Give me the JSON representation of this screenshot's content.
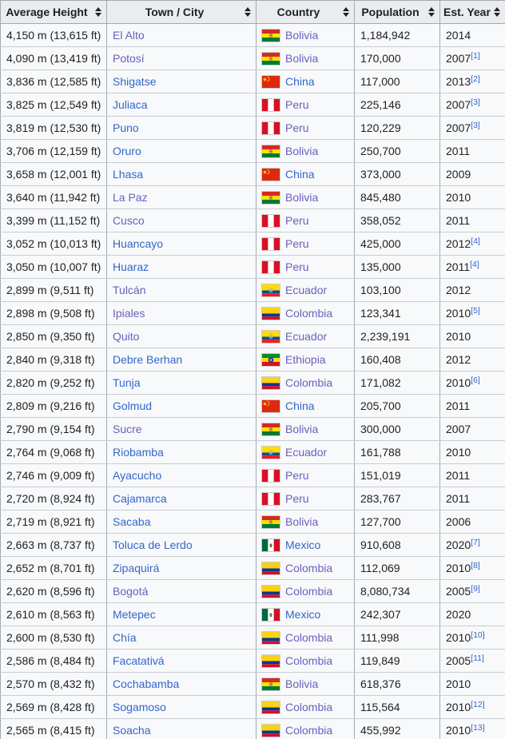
{
  "header": {
    "columns": [
      "Average Height",
      "Town / City",
      "Country",
      "Population",
      "Est. Year"
    ]
  },
  "colors": {
    "link_blue": "#3366cc",
    "link_visited_purple": "#6a5fbf",
    "header_bg": "#eaecf0",
    "body_bg": "#f8f9fa",
    "column_border": "#a2a9b1",
    "row_border": "#c8ccd1",
    "text": "#202122"
  },
  "icons": {
    "sort": "sort-toggle-icon",
    "flags_used": [
      "bolivia-flag-icon",
      "china-flag-icon",
      "peru-flag-icon",
      "ecuador-flag-icon",
      "colombia-flag-icon",
      "ethiopia-flag-icon",
      "mexico-flag-icon"
    ]
  },
  "rows": [
    {
      "height": "4,150 m (13,615 ft)",
      "city": "El Alto",
      "city_visited": true,
      "flag": "bolivia",
      "country": "Bolivia",
      "country_visited": true,
      "population": "1,184,942",
      "year": "2014",
      "ref": ""
    },
    {
      "height": "4,090 m (13,419 ft)",
      "city": "Potosí",
      "city_visited": true,
      "flag": "bolivia",
      "country": "Bolivia",
      "country_visited": true,
      "population": "170,000",
      "year": "2007",
      "ref": "1"
    },
    {
      "height": "3,836 m (12,585 ft)",
      "city": "Shigatse",
      "city_visited": false,
      "flag": "china",
      "country": "China",
      "country_visited": false,
      "population": "117,000",
      "year": "2013",
      "ref": "2"
    },
    {
      "height": "3,825 m (12,549 ft)",
      "city": "Juliaca",
      "city_visited": false,
      "flag": "peru",
      "country": "Peru",
      "country_visited": true,
      "population": "225,146",
      "year": "2007",
      "ref": "3"
    },
    {
      "height": "3,819 m (12,530 ft)",
      "city": "Puno",
      "city_visited": false,
      "flag": "peru",
      "country": "Peru",
      "country_visited": true,
      "population": "120,229",
      "year": "2007",
      "ref": "3"
    },
    {
      "height": "3,706 m (12,159 ft)",
      "city": "Oruro",
      "city_visited": false,
      "flag": "bolivia",
      "country": "Bolivia",
      "country_visited": true,
      "population": "250,700",
      "year": "2011",
      "ref": ""
    },
    {
      "height": "3,658 m (12,001 ft)",
      "city": "Lhasa",
      "city_visited": false,
      "flag": "china",
      "country": "China",
      "country_visited": false,
      "population": "373,000",
      "year": "2009",
      "ref": ""
    },
    {
      "height": "3,640 m (11,942 ft)",
      "city": "La Paz",
      "city_visited": true,
      "flag": "bolivia",
      "country": "Bolivia",
      "country_visited": true,
      "population": "845,480",
      "year": "2010",
      "ref": ""
    },
    {
      "height": "3,399 m (11,152 ft)",
      "city": "Cusco",
      "city_visited": true,
      "flag": "peru",
      "country": "Peru",
      "country_visited": true,
      "population": "358,052",
      "year": "2011",
      "ref": ""
    },
    {
      "height": "3,052 m (10,013 ft)",
      "city": "Huancayo",
      "city_visited": false,
      "flag": "peru",
      "country": "Peru",
      "country_visited": true,
      "population": "425,000",
      "year": "2012",
      "ref": "4"
    },
    {
      "height": "3,050 m (10,007 ft)",
      "city": "Huaraz",
      "city_visited": false,
      "flag": "peru",
      "country": "Peru",
      "country_visited": true,
      "population": "135,000",
      "year": "2011",
      "ref": "4"
    },
    {
      "height": "2,899 m (9,511 ft)",
      "city": "Tulcán",
      "city_visited": true,
      "flag": "ecuador",
      "country": "Ecuador",
      "country_visited": true,
      "population": "103,100",
      "year": "2012",
      "ref": ""
    },
    {
      "height": "2,898 m (9,508 ft)",
      "city": "Ipiales",
      "city_visited": true,
      "flag": "colombia",
      "country": "Colombia",
      "country_visited": true,
      "population": "123,341",
      "year": "2010",
      "ref": "5"
    },
    {
      "height": "2,850 m (9,350 ft)",
      "city": "Quito",
      "city_visited": true,
      "flag": "ecuador",
      "country": "Ecuador",
      "country_visited": true,
      "population": "2,239,191",
      "year": "2010",
      "ref": ""
    },
    {
      "height": "2,840 m (9,318 ft)",
      "city": "Debre Berhan",
      "city_visited": false,
      "flag": "ethiopia",
      "country": "Ethiopia",
      "country_visited": true,
      "population": "160,408",
      "year": "2012",
      "ref": ""
    },
    {
      "height": "2,820 m (9,252 ft)",
      "city": "Tunja",
      "city_visited": false,
      "flag": "colombia",
      "country": "Colombia",
      "country_visited": true,
      "population": "171,082",
      "year": "2010",
      "ref": "6"
    },
    {
      "height": "2,809 m (9,216 ft)",
      "city": "Golmud",
      "city_visited": false,
      "flag": "china",
      "country": "China",
      "country_visited": false,
      "population": "205,700",
      "year": "2011",
      "ref": ""
    },
    {
      "height": "2,790 m (9,154 ft)",
      "city": "Sucre",
      "city_visited": true,
      "flag": "bolivia",
      "country": "Bolivia",
      "country_visited": true,
      "population": "300,000",
      "year": "2007",
      "ref": ""
    },
    {
      "height": "2,764 m (9,068 ft)",
      "city": "Riobamba",
      "city_visited": false,
      "flag": "ecuador",
      "country": "Ecuador",
      "country_visited": true,
      "population": "161,788",
      "year": "2010",
      "ref": ""
    },
    {
      "height": "2,746 m (9,009 ft)",
      "city": "Ayacucho",
      "city_visited": false,
      "flag": "peru",
      "country": "Peru",
      "country_visited": true,
      "population": "151,019",
      "year": "2011",
      "ref": ""
    },
    {
      "height": "2,720 m (8,924 ft)",
      "city": "Cajamarca",
      "city_visited": false,
      "flag": "peru",
      "country": "Peru",
      "country_visited": true,
      "population": "283,767",
      "year": "2011",
      "ref": ""
    },
    {
      "height": "2,719 m (8,921 ft)",
      "city": "Sacaba",
      "city_visited": false,
      "flag": "bolivia",
      "country": "Bolivia",
      "country_visited": true,
      "population": "127,700",
      "year": "2006",
      "ref": ""
    },
    {
      "height": "2,663 m (8,737 ft)",
      "city": "Toluca de Lerdo",
      "city_visited": false,
      "flag": "mexico",
      "country": "Mexico",
      "country_visited": false,
      "population": "910,608",
      "year": "2020",
      "ref": "7"
    },
    {
      "height": "2,652 m (8,701 ft)",
      "city": "Zipaquirá",
      "city_visited": false,
      "flag": "colombia",
      "country": "Colombia",
      "country_visited": true,
      "population": "112,069",
      "year": "2010",
      "ref": "8"
    },
    {
      "height": "2,620 m (8,596 ft)",
      "city": "Bogotá",
      "city_visited": true,
      "flag": "colombia",
      "country": "Colombia",
      "country_visited": true,
      "population": "8,080,734",
      "year": "2005",
      "ref": "9"
    },
    {
      "height": "2,610 m (8,563 ft)",
      "city": "Metepec",
      "city_visited": false,
      "flag": "mexico",
      "country": "Mexico",
      "country_visited": false,
      "population": "242,307",
      "year": "2020",
      "ref": ""
    },
    {
      "height": "2,600 m (8,530 ft)",
      "city": "Chía",
      "city_visited": false,
      "flag": "colombia",
      "country": "Colombia",
      "country_visited": true,
      "population": "111,998",
      "year": "2010",
      "ref": "10"
    },
    {
      "height": "2,586 m (8,484 ft)",
      "city": "Facatativá",
      "city_visited": false,
      "flag": "colombia",
      "country": "Colombia",
      "country_visited": true,
      "population": "119,849",
      "year": "2005",
      "ref": "11"
    },
    {
      "height": "2,570 m (8,432 ft)",
      "city": "Cochabamba",
      "city_visited": false,
      "flag": "bolivia",
      "country": "Bolivia",
      "country_visited": true,
      "population": "618,376",
      "year": "2010",
      "ref": ""
    },
    {
      "height": "2,569 m (8,428 ft)",
      "city": "Sogamoso",
      "city_visited": false,
      "flag": "colombia",
      "country": "Colombia",
      "country_visited": true,
      "population": "115,564",
      "year": "2010",
      "ref": "12"
    },
    {
      "height": "2,565 m (8,415 ft)",
      "city": "Soacha",
      "city_visited": false,
      "flag": "colombia",
      "country": "Colombia",
      "country_visited": true,
      "population": "455,992",
      "year": "2010",
      "ref": "13"
    }
  ]
}
